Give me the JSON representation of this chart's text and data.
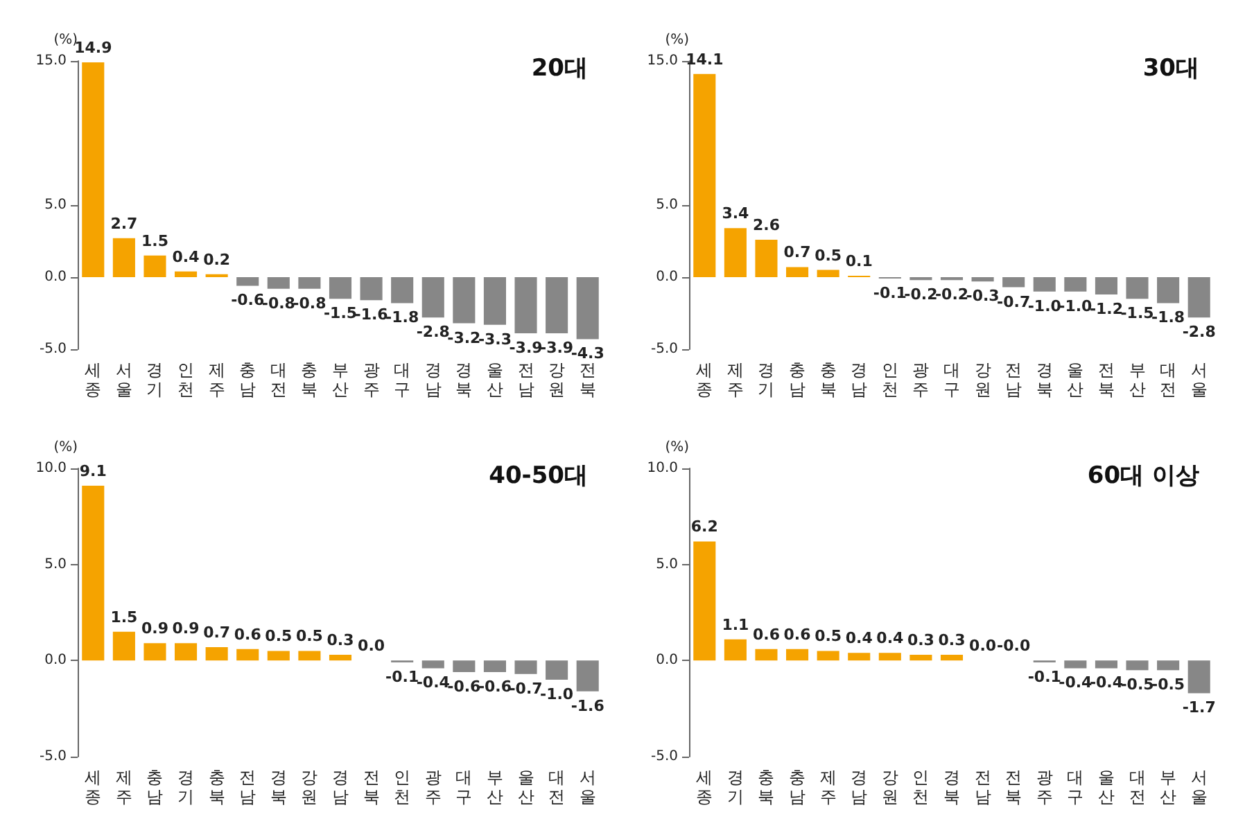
{
  "chart_data": [
    {
      "type": "bar",
      "title": "20대",
      "ylabel": "(%)",
      "categories": [
        "세종",
        "서울",
        "경기",
        "인천",
        "제주",
        "충남",
        "대전",
        "충북",
        "부산",
        "광주",
        "대구",
        "경남",
        "경북",
        "울산",
        "전남",
        "강원",
        "전북"
      ],
      "values": [
        14.9,
        2.7,
        1.5,
        0.4,
        0.2,
        -0.6,
        -0.8,
        -0.8,
        -1.5,
        -1.6,
        -1.8,
        -2.8,
        -3.2,
        -3.3,
        -3.9,
        -3.9,
        -4.3
      ],
      "value_labels": [
        "14.9",
        "2.7",
        "1.5",
        "0.4",
        "0.2",
        "-0.6",
        "-0.8",
        "-0.8",
        "-1.5",
        "-1.6",
        "-1.8",
        "-2.8",
        "-3.2",
        "-3.3",
        "-3.9",
        "-3.9",
        "-4.3"
      ],
      "colors": [
        "#f5a300",
        "#f5a300",
        "#f5a300",
        "#f5a300",
        "#f5a300",
        "#878787",
        "#878787",
        "#878787",
        "#878787",
        "#878787",
        "#878787",
        "#878787",
        "#878787",
        "#878787",
        "#878787",
        "#878787",
        "#878787"
      ],
      "ylim": [
        -5,
        15
      ],
      "yticks": [
        {
          "value": -5,
          "label": "-5.0"
        },
        {
          "value": 0,
          "label": "0.0"
        },
        {
          "value": 5,
          "label": "5.0"
        },
        {
          "value": 15,
          "label": "15.0"
        }
      ],
      "grid": false
    },
    {
      "type": "bar",
      "title": "30대",
      "ylabel": "(%)",
      "categories": [
        "세종",
        "제주",
        "경기",
        "충남",
        "충북",
        "경남",
        "인천",
        "광주",
        "대구",
        "강원",
        "전남",
        "경북",
        "울산",
        "전북",
        "부산",
        "대전",
        "서울"
      ],
      "values": [
        14.1,
        3.4,
        2.6,
        0.7,
        0.5,
        0.1,
        -0.1,
        -0.2,
        -0.2,
        -0.3,
        -0.7,
        -1.0,
        -1.0,
        -1.2,
        -1.5,
        -1.8,
        -2.8
      ],
      "value_labels": [
        "14.1",
        "3.4",
        "2.6",
        "0.7",
        "0.5",
        "0.1",
        "-0.1",
        "-0.2",
        "-0.2",
        "-0.3",
        "-0.7",
        "-1.0",
        "-1.0",
        "-1.2",
        "-1.5",
        "-1.8",
        "-2.8"
      ],
      "colors": [
        "#f5a300",
        "#f5a300",
        "#f5a300",
        "#f5a300",
        "#f5a300",
        "#f5a300",
        "#878787",
        "#878787",
        "#878787",
        "#878787",
        "#878787",
        "#878787",
        "#878787",
        "#878787",
        "#878787",
        "#878787",
        "#878787"
      ],
      "ylim": [
        -5,
        15
      ],
      "yticks": [
        {
          "value": -5,
          "label": "-5.0"
        },
        {
          "value": 0,
          "label": "0.0"
        },
        {
          "value": 5,
          "label": "5.0"
        },
        {
          "value": 15,
          "label": "15.0"
        }
      ],
      "grid": false
    },
    {
      "type": "bar",
      "title": "40-50대",
      "ylabel": "(%)",
      "categories": [
        "세종",
        "제주",
        "충남",
        "경기",
        "충북",
        "전남",
        "경북",
        "강원",
        "경남",
        "전북",
        "인천",
        "광주",
        "대구",
        "부산",
        "울산",
        "대전",
        "서울"
      ],
      "values": [
        9.1,
        1.5,
        0.9,
        0.9,
        0.7,
        0.6,
        0.5,
        0.5,
        0.3,
        0.0,
        -0.1,
        -0.4,
        -0.6,
        -0.6,
        -0.7,
        -1.0,
        -1.6
      ],
      "value_labels": [
        "9.1",
        "1.5",
        "0.9",
        "0.9",
        "0.7",
        "0.6",
        "0.5",
        "0.5",
        "0.3",
        "0.0",
        "-0.1",
        "-0.4",
        "-0.6",
        "-0.6",
        "-0.7",
        "-1.0",
        "-1.6"
      ],
      "colors": [
        "#f5a300",
        "#f5a300",
        "#f5a300",
        "#f5a300",
        "#f5a300",
        "#f5a300",
        "#f5a300",
        "#f5a300",
        "#f5a300",
        "#f5a300",
        "#878787",
        "#878787",
        "#878787",
        "#878787",
        "#878787",
        "#878787",
        "#878787"
      ],
      "ylim": [
        -5,
        10
      ],
      "yticks": [
        {
          "value": -5,
          "label": "-5.0"
        },
        {
          "value": 0,
          "label": "0.0"
        },
        {
          "value": 5,
          "label": "5.0"
        },
        {
          "value": 10,
          "label": "10.0"
        }
      ],
      "grid": false
    },
    {
      "type": "bar",
      "title": "60대 이상",
      "ylabel": "(%)",
      "categories": [
        "세종",
        "경기",
        "충북",
        "충남",
        "제주",
        "경남",
        "강원",
        "인천",
        "경북",
        "전남",
        "전북",
        "광주",
        "대구",
        "울산",
        "대전",
        "부산",
        "서울"
      ],
      "values": [
        6.2,
        1.1,
        0.6,
        0.6,
        0.5,
        0.4,
        0.4,
        0.3,
        0.3,
        0.0,
        -0.0,
        -0.1,
        -0.4,
        -0.4,
        -0.5,
        -0.5,
        -1.7
      ],
      "value_labels": [
        "6.2",
        "1.1",
        "0.6",
        "0.6",
        "0.5",
        "0.4",
        "0.4",
        "0.3",
        "0.3",
        "0.0",
        "-0.0",
        "-0.1",
        "-0.4",
        "-0.4",
        "-0.5",
        "-0.5",
        "-1.7"
      ],
      "colors": [
        "#f5a300",
        "#f5a300",
        "#f5a300",
        "#f5a300",
        "#f5a300",
        "#f5a300",
        "#f5a300",
        "#f5a300",
        "#f5a300",
        "#f5a300",
        "#878787",
        "#878787",
        "#878787",
        "#878787",
        "#878787",
        "#878787",
        "#878787"
      ],
      "ylim": [
        -5,
        10
      ],
      "yticks": [
        {
          "value": -5,
          "label": "-5.0"
        },
        {
          "value": 0,
          "label": "0.0"
        },
        {
          "value": 5,
          "label": "5.0"
        },
        {
          "value": 10,
          "label": "10.0"
        }
      ],
      "grid": false
    }
  ]
}
